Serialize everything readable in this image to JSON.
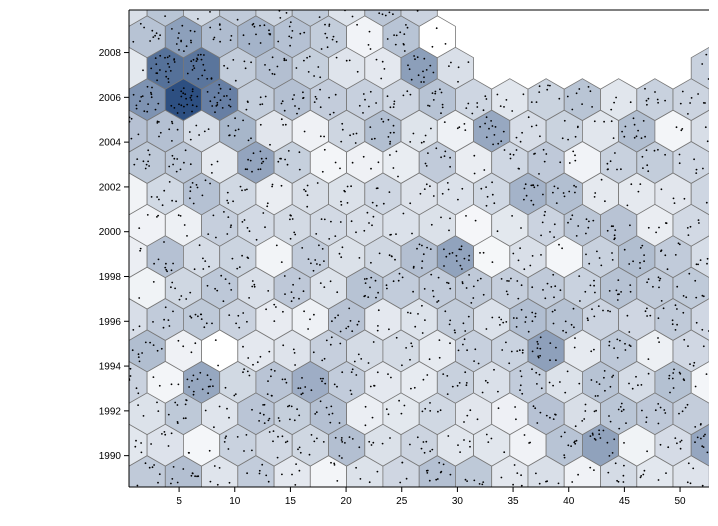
{
  "chart_data": {
    "type": "hexbin",
    "title": "",
    "xlabel": "",
    "ylabel": "",
    "x_ticks": [
      "5",
      "10",
      "15",
      "20",
      "25",
      "30",
      "35",
      "40",
      "45",
      "50"
    ],
    "y_ticks": [
      "1990",
      "1992",
      "1994",
      "1996",
      "1998",
      "2000",
      "2002",
      "2004",
      "2006",
      "2008"
    ],
    "xlim": [
      0.5,
      52.6
    ],
    "ylim": [
      1988.6,
      2009.9
    ],
    "grid": false,
    "legend": "none",
    "bin_radius_units": 1.9,
    "color_scale": {
      "low": "#ffffff",
      "high": "#08306b"
    },
    "dense_region": {
      "x": [
        1,
        10
      ],
      "y": [
        2004.5,
        2009.9
      ],
      "peak_x": 5.5,
      "peak_y": 2006.5
    },
    "empty_region": {
      "x": [
        30,
        52.6
      ],
      "y": [
        2006.3,
        2009.9
      ]
    },
    "empty_bins": [
      {
        "x": 3.5,
        "y": 1994.5
      },
      {
        "x": 9.5,
        "y": 1994.5
      },
      {
        "x": 27,
        "y": 2008.2
      }
    ],
    "point_count_approx": 2000
  }
}
